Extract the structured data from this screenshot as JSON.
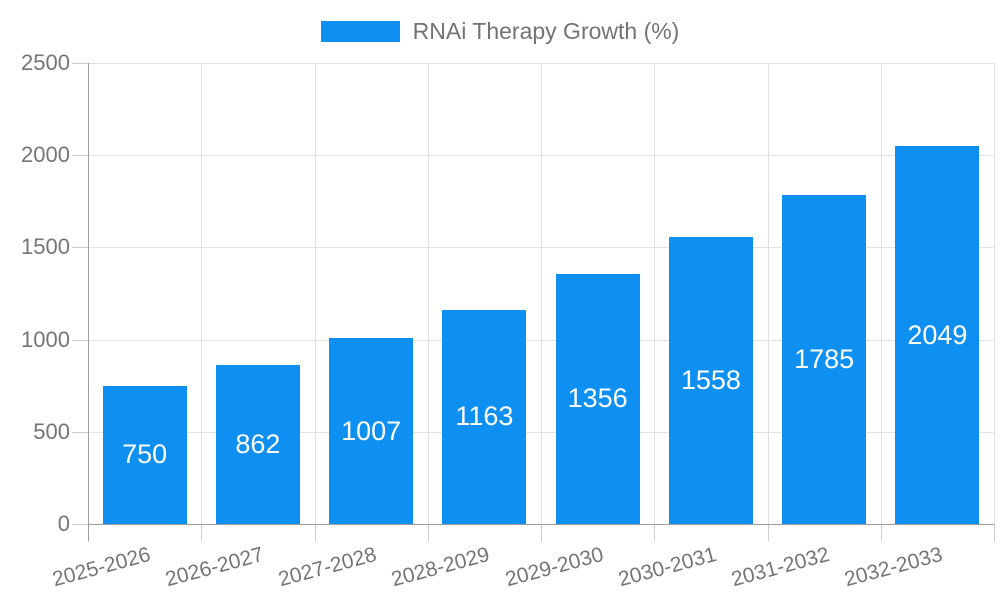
{
  "legend": {
    "label": "RNAi Therapy Growth (%)"
  },
  "chart_data": {
    "type": "bar",
    "title": "",
    "series_name": "RNAi Therapy Growth (%)",
    "categories": [
      "2025-2026",
      "2026-2027",
      "2027-2028",
      "2028-2029",
      "2029-2030",
      "2030-2031",
      "2031-2032",
      "2032-2033"
    ],
    "values": [
      750,
      862,
      1007,
      1163,
      1356,
      1558,
      1785,
      2049
    ],
    "value_labels": [
      "750",
      "862",
      "1007",
      "1163",
      "1356",
      "1558",
      "1785",
      "2049"
    ],
    "xlabel": "",
    "ylabel": "",
    "ylim": [
      0,
      2500
    ],
    "ytick_step": 500,
    "ytick_labels": [
      "0",
      "500",
      "1000",
      "1500",
      "2000",
      "2500"
    ],
    "grid": true,
    "legend_position": "top-center",
    "x_label_rotation_deg": -15,
    "colors": {
      "bar": "#0d90f2",
      "value_label": "#ffffff",
      "gridline": "#e2e2e2",
      "axis_line": "#9e9e9e",
      "tick": "#cccccc",
      "tick_label": "#757575",
      "legend_label": "#737373",
      "background": "#ffffff"
    }
  }
}
